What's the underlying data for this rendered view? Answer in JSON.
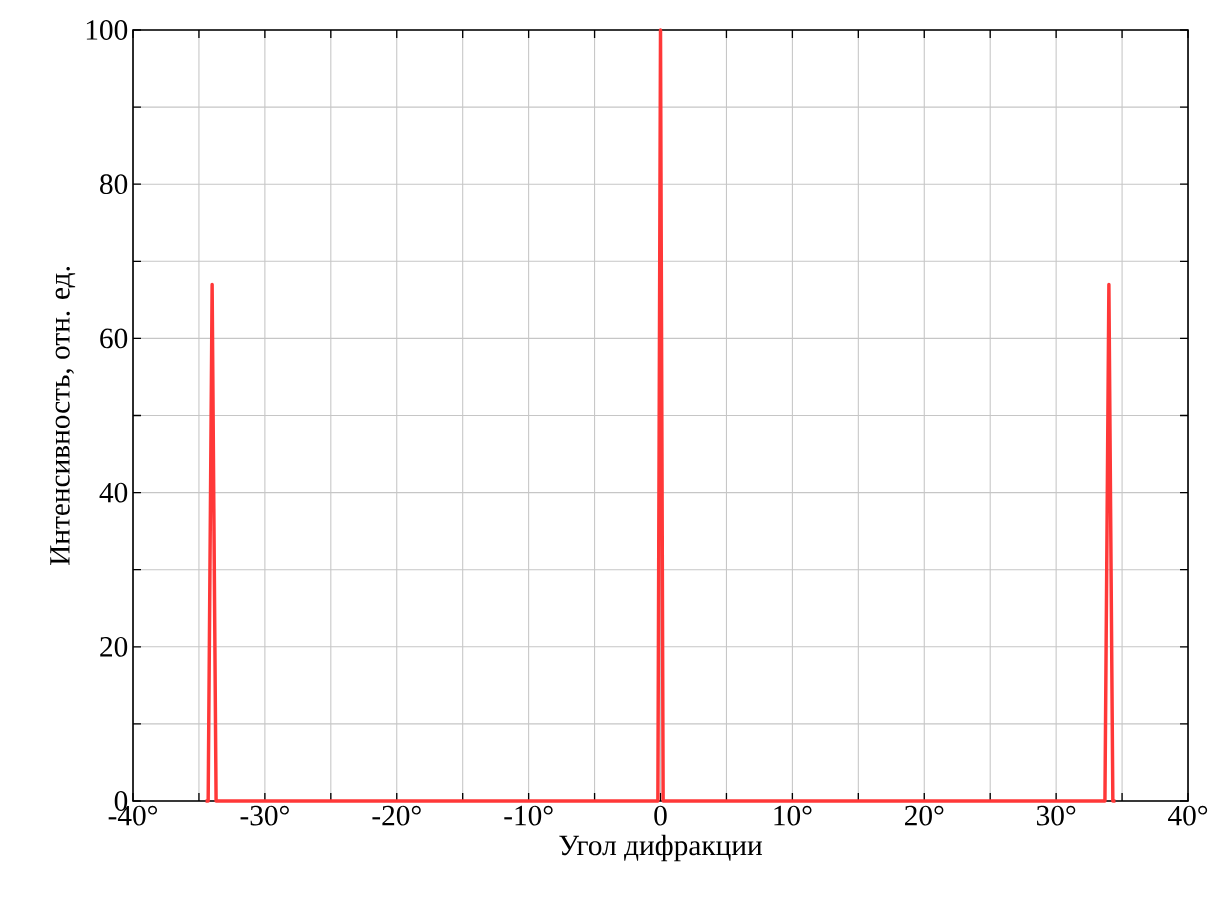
{
  "chart_data": {
    "type": "line",
    "xlabel": "Угол дифракции",
    "ylabel": "Интенсивность, отн. ед.",
    "x": [
      -34.5,
      -34.3,
      -34.0,
      -33.7,
      -33.5,
      -0.4,
      -0.2,
      0,
      0.2,
      0.4,
      33.5,
      33.7,
      34.0,
      34.3,
      34.5
    ],
    "values": [
      0,
      0,
      67,
      0,
      0,
      0,
      0,
      100,
      0,
      0,
      0,
      0,
      67,
      0,
      0
    ],
    "color": "#ff3838",
    "grid": true,
    "marker": "none",
    "line_style": "solid",
    "xlim": [
      -40,
      40
    ],
    "xticks": [
      {
        "value": -40,
        "label": "-40°"
      },
      {
        "value": -35,
        "label": null
      },
      {
        "value": -30,
        "label": "-30°"
      },
      {
        "value": -25,
        "label": null
      },
      {
        "value": -20,
        "label": "-20°"
      },
      {
        "value": -15,
        "label": null
      },
      {
        "value": -10,
        "label": "-10°"
      },
      {
        "value": -5,
        "label": null
      },
      {
        "value": 0,
        "label": "0"
      },
      {
        "value": 5,
        "label": null
      },
      {
        "value": 10,
        "label": "10°"
      },
      {
        "value": 15,
        "label": null
      },
      {
        "value": 20,
        "label": "20°"
      },
      {
        "value": 25,
        "label": null
      },
      {
        "value": 30,
        "label": "30°"
      },
      {
        "value": 35,
        "label": null
      },
      {
        "value": 40,
        "label": "40°"
      }
    ],
    "ylim": [
      0,
      100
    ],
    "yticks": [
      0,
      {
        "value": 10,
        "label": null
      },
      20,
      {
        "value": 30,
        "label": null
      },
      40,
      {
        "value": 50,
        "label": null
      },
      60,
      {
        "value": 70,
        "label": null
      },
      80,
      {
        "value": 90,
        "label": null
      },
      100
    ]
  }
}
